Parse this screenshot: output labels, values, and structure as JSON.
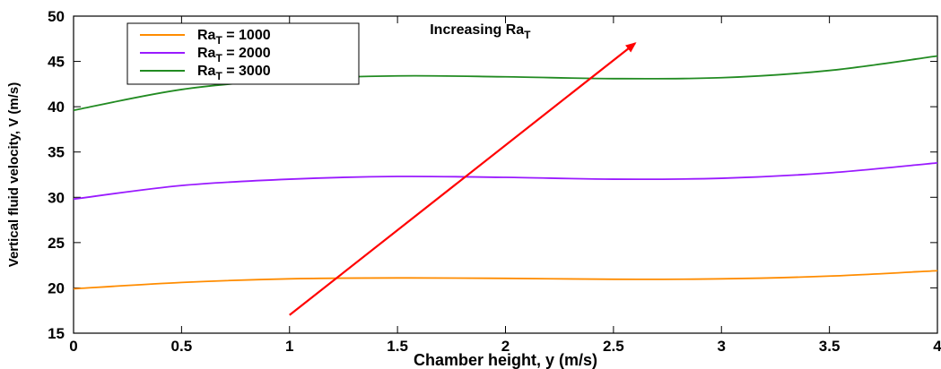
{
  "chart_data": {
    "type": "line",
    "xlabel": "Chamber height, y (m/s)",
    "ylabel": "Vertical fluid velocity, V  (m/s)",
    "xlim": [
      0,
      4
    ],
    "ylim": [
      15,
      50
    ],
    "x_ticks": [
      "0",
      "0.5",
      "1",
      "1.5",
      "2",
      "2.5",
      "3",
      "3.5",
      "4"
    ],
    "y_ticks": [
      "15",
      "20",
      "25",
      "30",
      "35",
      "40",
      "45",
      "50"
    ],
    "grid": false,
    "legend_position": "top-left",
    "series": [
      {
        "name": "Ra_T = 1000",
        "label_main": "Ra",
        "label_sub": "T",
        "label_rest": " = 1000",
        "color": "#ff8c00",
        "x": [
          0,
          0.5,
          1,
          1.5,
          2,
          2.5,
          3,
          3.5,
          4
        ],
        "y": [
          19.9,
          20.6,
          21.0,
          21.1,
          21.05,
          20.95,
          21.0,
          21.3,
          21.9
        ]
      },
      {
        "name": "Ra_T = 2000",
        "label_main": "Ra",
        "label_sub": "T",
        "label_rest": " = 2000",
        "color": "#9a1aff",
        "x": [
          0,
          0.5,
          1,
          1.5,
          2,
          2.5,
          3,
          3.5,
          4
        ],
        "y": [
          29.8,
          31.3,
          32.0,
          32.3,
          32.2,
          32.0,
          32.1,
          32.7,
          33.8
        ]
      },
      {
        "name": "Ra_T = 3000",
        "label_main": "Ra",
        "label_sub": "T",
        "label_rest": " = 3000",
        "color": "#228b22",
        "x": [
          0,
          0.5,
          1,
          1.5,
          2,
          2.5,
          3,
          3.5,
          4
        ],
        "y": [
          39.6,
          41.9,
          43.0,
          43.4,
          43.3,
          43.1,
          43.2,
          44.0,
          45.6
        ]
      }
    ],
    "annotations": [
      {
        "text_main": "Increasing Ra",
        "text_sub": "T",
        "arrow_from": [
          1.0,
          17.0
        ],
        "arrow_to": [
          2.6,
          47.0
        ],
        "text_at": [
          1.65,
          48.0
        ],
        "color": "#ff0000"
      }
    ]
  }
}
